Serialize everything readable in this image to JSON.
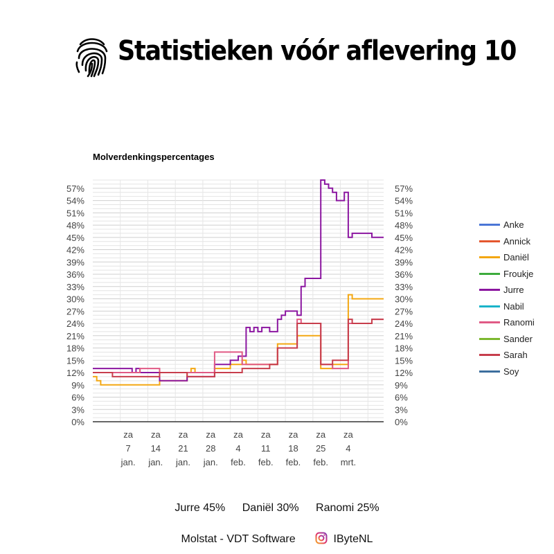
{
  "header": {
    "title": "Statistieken vóór aflevering 10",
    "icon": "fingerprint-icon"
  },
  "chart_data": {
    "type": "line",
    "title": "Molverdenkingspercentages",
    "ylim": [
      0,
      59
    ],
    "y_ticks": [
      "0%",
      "3%",
      "6%",
      "9%",
      "12%",
      "15%",
      "18%",
      "21%",
      "24%",
      "27%",
      "30%",
      "33%",
      "36%",
      "39%",
      "42%",
      "45%",
      "48%",
      "51%",
      "54%",
      "57%"
    ],
    "x_ticks": [
      {
        "lines": [
          "za",
          "7",
          "jan."
        ]
      },
      {
        "lines": [
          "za",
          "14",
          "jan."
        ]
      },
      {
        "lines": [
          "za",
          "21",
          "jan."
        ]
      },
      {
        "lines": [
          "za",
          "28",
          "jan."
        ]
      },
      {
        "lines": [
          "za",
          "4",
          "feb."
        ]
      },
      {
        "lines": [
          "za",
          "11",
          "feb."
        ]
      },
      {
        "lines": [
          "za",
          "18",
          "feb."
        ]
      },
      {
        "lines": [
          "za",
          "25",
          "feb."
        ]
      },
      {
        "lines": [
          "za",
          "4",
          "mrt."
        ]
      }
    ],
    "x_start": "2023-12-28",
    "x_end": "2024-03-11",
    "grid": true,
    "legend_position": "right",
    "series": [
      {
        "name": "Anke",
        "color": "#4a76d6",
        "points": []
      },
      {
        "name": "Annick",
        "color": "#e4572e",
        "points": []
      },
      {
        "name": "Daniël",
        "color": "#f3a712",
        "points": [
          [
            "2023-12-28",
            11
          ],
          [
            "2023-12-29",
            10
          ],
          [
            "2023-12-30",
            9
          ],
          [
            "2024-01-07",
            9
          ],
          [
            "2024-01-14",
            10
          ],
          [
            "2024-01-21",
            12
          ],
          [
            "2024-01-22",
            13
          ],
          [
            "2024-01-23",
            12
          ],
          [
            "2024-01-28",
            13
          ],
          [
            "2024-02-01",
            14
          ],
          [
            "2024-02-04",
            15
          ],
          [
            "2024-02-05",
            14
          ],
          [
            "2024-02-11",
            14
          ],
          [
            "2024-02-13",
            19
          ],
          [
            "2024-02-18",
            21
          ],
          [
            "2024-02-23",
            21
          ],
          [
            "2024-02-24",
            13
          ],
          [
            "2024-02-27",
            14
          ],
          [
            "2024-03-01",
            14
          ],
          [
            "2024-03-02",
            31
          ],
          [
            "2024-03-03",
            30
          ],
          [
            "2024-03-11",
            30
          ]
        ]
      },
      {
        "name": "Froukje",
        "color": "#3cab3c",
        "points": []
      },
      {
        "name": "Jurre",
        "color": "#8b16a0",
        "points": [
          [
            "2023-12-28",
            13
          ],
          [
            "2024-01-01",
            13
          ],
          [
            "2024-01-07",
            12
          ],
          [
            "2024-01-08",
            13
          ],
          [
            "2024-01-09",
            12
          ],
          [
            "2024-01-14",
            10
          ],
          [
            "2024-01-21",
            11
          ],
          [
            "2024-01-28",
            14
          ],
          [
            "2024-02-01",
            15
          ],
          [
            "2024-02-03",
            16
          ],
          [
            "2024-02-05",
            23
          ],
          [
            "2024-02-06",
            22
          ],
          [
            "2024-02-07",
            23
          ],
          [
            "2024-02-08",
            22
          ],
          [
            "2024-02-09",
            23
          ],
          [
            "2024-02-11",
            22
          ],
          [
            "2024-02-13",
            25
          ],
          [
            "2024-02-14",
            26
          ],
          [
            "2024-02-15",
            27
          ],
          [
            "2024-02-18",
            26
          ],
          [
            "2024-02-19",
            33
          ],
          [
            "2024-02-20",
            35
          ],
          [
            "2024-02-23",
            35
          ],
          [
            "2024-02-24",
            59
          ],
          [
            "2024-02-25",
            58
          ],
          [
            "2024-02-26",
            57
          ],
          [
            "2024-02-27",
            56
          ],
          [
            "2024-02-28",
            54
          ],
          [
            "2024-03-01",
            56
          ],
          [
            "2024-03-02",
            45
          ],
          [
            "2024-03-03",
            46
          ],
          [
            "2024-03-07",
            46
          ],
          [
            "2024-03-08",
            45
          ],
          [
            "2024-03-11",
            45
          ]
        ]
      },
      {
        "name": "Nabil",
        "color": "#1ab3c9",
        "points": []
      },
      {
        "name": "Ranomi",
        "color": "#e05a85",
        "points": [
          [
            "2023-12-28",
            12
          ],
          [
            "2024-01-02",
            12
          ],
          [
            "2024-01-07",
            12
          ],
          [
            "2024-01-09",
            13
          ],
          [
            "2024-01-14",
            12
          ],
          [
            "2024-01-21",
            12
          ],
          [
            "2024-01-23",
            12
          ],
          [
            "2024-01-28",
            17
          ],
          [
            "2024-02-04",
            14
          ],
          [
            "2024-02-11",
            14
          ],
          [
            "2024-02-13",
            18
          ],
          [
            "2024-02-18",
            25
          ],
          [
            "2024-02-19",
            24
          ],
          [
            "2024-02-24",
            14
          ],
          [
            "2024-02-27",
            13
          ],
          [
            "2024-03-02",
            24
          ],
          [
            "2024-03-08",
            25
          ],
          [
            "2024-03-11",
            25
          ]
        ]
      },
      {
        "name": "Sander",
        "color": "#7cb82f",
        "points": []
      },
      {
        "name": "Sarah",
        "color": "#c73e4c",
        "points": [
          [
            "2023-12-28",
            12
          ],
          [
            "2024-01-02",
            11
          ],
          [
            "2024-01-07",
            11
          ],
          [
            "2024-01-14",
            12
          ],
          [
            "2024-01-21",
            11
          ],
          [
            "2024-01-28",
            12
          ],
          [
            "2024-02-04",
            13
          ],
          [
            "2024-02-11",
            14
          ],
          [
            "2024-02-13",
            18
          ],
          [
            "2024-02-18",
            24
          ],
          [
            "2024-02-24",
            14
          ],
          [
            "2024-02-27",
            15
          ],
          [
            "2024-03-01",
            15
          ],
          [
            "2024-03-02",
            25
          ],
          [
            "2024-03-03",
            24
          ],
          [
            "2024-03-08",
            25
          ],
          [
            "2024-03-11",
            25
          ]
        ]
      },
      {
        "name": "Soy",
        "color": "#3c6e9e",
        "points": []
      }
    ]
  },
  "summary": [
    {
      "label": "Jurre 45%"
    },
    {
      "label": "Daniël 30%"
    },
    {
      "label": "Ranomi 25%"
    }
  ],
  "footer": {
    "credit": "Molstat - VDT Software",
    "instagram_icon": "instagram-icon",
    "handle": "IByteNL"
  }
}
